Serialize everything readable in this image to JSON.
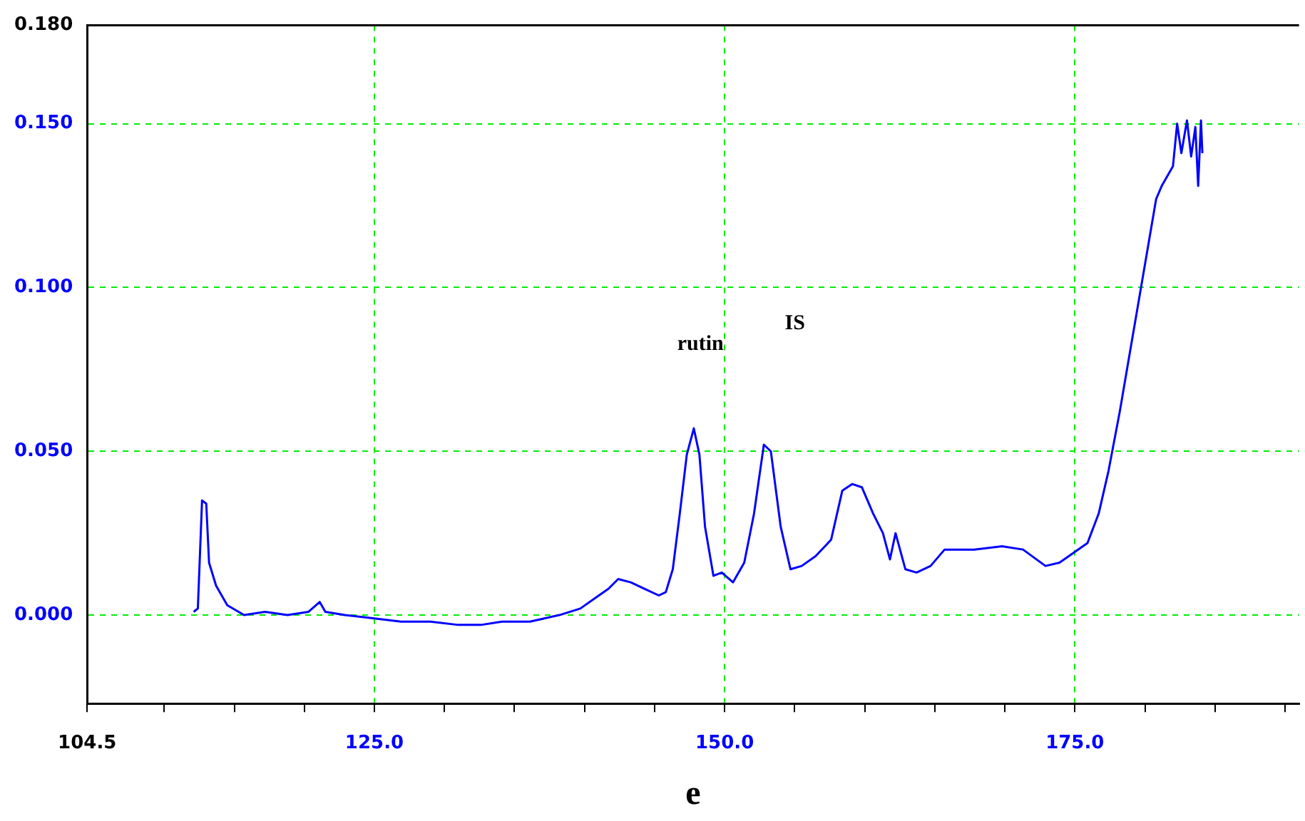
{
  "chart_data": {
    "type": "line",
    "xlabel": "e",
    "annotations": [
      "rutin",
      "IS"
    ],
    "xlim": [
      104.5,
      191
    ],
    "ylim": [
      -0.027,
      0.18
    ],
    "xticks": [
      {
        "value": 104.5,
        "label": "104.5"
      },
      {
        "value": 110,
        "label": null
      },
      {
        "value": 115,
        "label": null
      },
      {
        "value": 120,
        "label": null
      },
      {
        "value": 125,
        "label": "125.0"
      },
      {
        "value": 130,
        "label": null
      },
      {
        "value": 135,
        "label": null
      },
      {
        "value": 140,
        "label": null
      },
      {
        "value": 145,
        "label": null
      },
      {
        "value": 150,
        "label": "150.0"
      },
      {
        "value": 155,
        "label": null
      },
      {
        "value": 160,
        "label": null
      },
      {
        "value": 165,
        "label": null
      },
      {
        "value": 170,
        "label": null
      },
      {
        "value": 175,
        "label": "175.0"
      },
      {
        "value": 180,
        "label": null
      },
      {
        "value": 185,
        "label": null
      },
      {
        "value": 190,
        "label": null
      }
    ],
    "yticks": [
      {
        "value": 0,
        "label": "0.000"
      },
      {
        "value": 0.05,
        "label": "0.050"
      },
      {
        "value": 0.1,
        "label": "0.100"
      },
      {
        "value": 0.15,
        "label": "0.150"
      },
      {
        "value": 0.18,
        "label": "0.180"
      }
    ],
    "grid": true,
    "line_style": "solid",
    "marker": "none",
    "series": [
      {
        "color": "#0000ff",
        "x": [
          112.1,
          112.4,
          112.7,
          113.0,
          113.2,
          113.7,
          114.5,
          115.7,
          117.2,
          118.8,
          120.3,
          121.1,
          121.5,
          122.9,
          125,
          126.9,
          129,
          131,
          132.6,
          134.1,
          136.1,
          138.2,
          139.7,
          140.7,
          141.7,
          142.4,
          143.3,
          144.3,
          145.3,
          145.8,
          146.3,
          146.8,
          147.3,
          147.8,
          148.2,
          148.6,
          149.2,
          149.8,
          150.6,
          151.4,
          152.1,
          152.8,
          153.3,
          154.0,
          154.7,
          155.5,
          156.5,
          157.6,
          158.4,
          159.1,
          159.8,
          160.6,
          161.3,
          161.8,
          162.2,
          162.9,
          163.7,
          164.7,
          165.7,
          167.8,
          169.8,
          171.3,
          172.9,
          173.9,
          174.9,
          175.9,
          176.7,
          177.4,
          178.2,
          178.8,
          179.4,
          179.8,
          180.2,
          180.8,
          181.2,
          182.0,
          182.3,
          182.6,
          183.0,
          183.3,
          183.6,
          183.8,
          184.0,
          184.1
        ],
        "values": [
          0.001,
          0.002,
          0.035,
          0.034,
          0.016,
          0.009,
          0.003,
          0,
          0.001,
          0,
          0.001,
          0.004,
          0.001,
          0,
          -0.001,
          -0.002,
          -0.002,
          -0.003,
          -0.003,
          -0.002,
          -0.002,
          0,
          0.002,
          0.005,
          0.008,
          0.011,
          0.01,
          0.008,
          0.006,
          0.007,
          0.014,
          0.031,
          0.049,
          0.057,
          0.049,
          0.027,
          0.012,
          0.013,
          0.01,
          0.016,
          0.031,
          0.052,
          0.05,
          0.027,
          0.014,
          0.015,
          0.018,
          0.023,
          0.038,
          0.04,
          0.039,
          0.031,
          0.025,
          0.017,
          0.025,
          0.014,
          0.013,
          0.015,
          0.02,
          0.02,
          0.021,
          0.02,
          0.015,
          0.016,
          0.019,
          0.022,
          0.031,
          0.044,
          0.062,
          0.077,
          0.092,
          0.102,
          0.112,
          0.127,
          0.131,
          0.137,
          0.15,
          0.141,
          0.151,
          0.14,
          0.149,
          0.131,
          0.151,
          0.141
        ]
      }
    ]
  }
}
